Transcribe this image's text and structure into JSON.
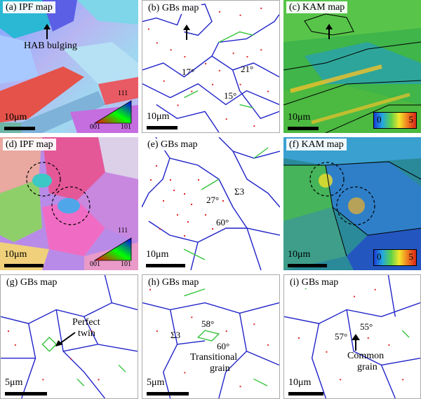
{
  "panels": {
    "a": {
      "label": "(a) IPF map",
      "annotation": "HAB bulging",
      "scale": "10μm",
      "legend": {
        "top": "111",
        "left": "001",
        "right": "101"
      }
    },
    "b": {
      "label": "(b) GBs map",
      "scale": "10μm",
      "angles": [
        "17°",
        "21°",
        "15°"
      ]
    },
    "c": {
      "label": "(c) KAM map",
      "scale": "10μm",
      "legend": {
        "min": "0",
        "max": "5"
      }
    },
    "d": {
      "label": "(d) IPF map",
      "scale": "10μm",
      "legend": {
        "top": "111",
        "left": "001",
        "right": "101"
      }
    },
    "e": {
      "label": "(e) GBs map",
      "scale": "10μm",
      "angles": [
        "27°",
        "Σ3",
        "60°"
      ]
    },
    "f": {
      "label": "(f) KAM map",
      "scale": "10μm",
      "legend": {
        "min": "0",
        "max": "5"
      }
    },
    "g": {
      "label": "(g) GBs map",
      "scale": "5μm",
      "annotation": [
        "Perfect",
        "twin"
      ]
    },
    "h": {
      "label": "(h) GBs map",
      "scale": "5μm",
      "angles": [
        "58°",
        "Σ3",
        "60°"
      ],
      "annotation": [
        "Transitional",
        "grain"
      ]
    },
    "i": {
      "label": "(i) GBs map",
      "scale": "10μm",
      "angles": [
        "55°",
        "57°"
      ],
      "annotation": [
        "Common",
        "grain"
      ]
    }
  },
  "colors": {
    "hab": "#1f22c8",
    "lab": "#e0241f",
    "twin": "#34c43a",
    "kam_low": "#1b3cd6",
    "kam_high": "#d62718"
  }
}
